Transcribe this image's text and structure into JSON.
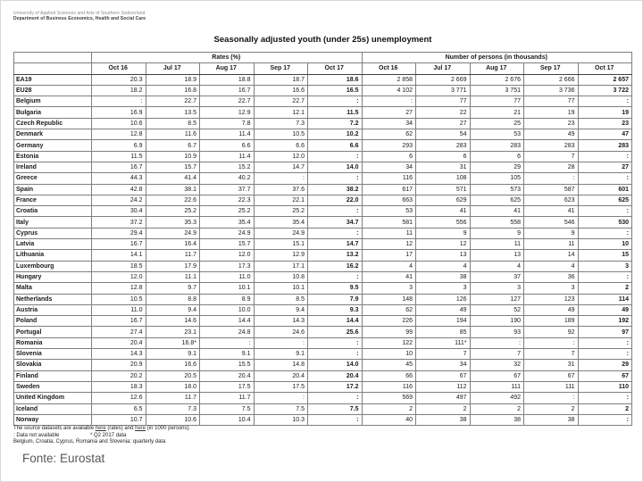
{
  "header": {
    "org_line1": "University of Applied Sciences and Arts of Southern Switzerland",
    "org_line2": "Department of Business Economics, Health and Social Care",
    "title": "Seasonally adjusted youth (under 25s) unemployment"
  },
  "table": {
    "group1_label": "Rates (%)",
    "group2_label": "Number of persons (in thousands)",
    "months": [
      "Oct 16",
      "Jul 17",
      "Aug 17",
      "Sep 17",
      "Oct 17"
    ],
    "rows": [
      {
        "country": "EA19",
        "rates": [
          "20.3",
          "18.9",
          "18.8",
          "18.7",
          "18.6"
        ],
        "persons": [
          "2 858",
          "2 669",
          "2 676",
          "2 666",
          "2 657"
        ]
      },
      {
        "country": "EU28",
        "rates": [
          "18.2",
          "16.8",
          "16.7",
          "16.6",
          "16.5"
        ],
        "persons": [
          "4 102",
          "3 771",
          "3 751",
          "3 736",
          "3 722"
        ]
      },
      {
        "country": "Belgium",
        "rates": [
          ":",
          "22.7",
          "22.7",
          "22.7",
          ":"
        ],
        "persons": [
          ":",
          "77",
          "77",
          "77",
          ":"
        ]
      },
      {
        "country": "Bulgaria",
        "rates": [
          "16.9",
          "13.5",
          "12.9",
          "12.1",
          "11.5"
        ],
        "persons": [
          "27",
          "22",
          "21",
          "19",
          "19"
        ]
      },
      {
        "country": "Czech Republic",
        "rates": [
          "10.6",
          "8.5",
          "7.8",
          "7.3",
          "7.2"
        ],
        "persons": [
          "34",
          "27",
          "25",
          "23",
          "23"
        ]
      },
      {
        "country": "Denmark",
        "rates": [
          "12.8",
          "11.6",
          "11.4",
          "10.5",
          "10.2"
        ],
        "persons": [
          "62",
          "54",
          "53",
          "49",
          "47"
        ]
      },
      {
        "country": "Germany",
        "rates": [
          "6.9",
          "6.7",
          "6.6",
          "6.6",
          "6.6"
        ],
        "persons": [
          "293",
          "283",
          "283",
          "283",
          "283"
        ]
      },
      {
        "country": "Estonia",
        "rates": [
          "11.5",
          "10.9",
          "11.4",
          "12.0",
          ":"
        ],
        "persons": [
          "6",
          "6",
          "6",
          "7",
          ":"
        ]
      },
      {
        "country": "Ireland",
        "rates": [
          "16.7",
          "15.7",
          "15.2",
          "14.7",
          "14.0"
        ],
        "persons": [
          "34",
          "31",
          "29",
          "28",
          "27"
        ]
      },
      {
        "country": "Greece",
        "rates": [
          "44.3",
          "41.4",
          "40.2",
          ":",
          ":"
        ],
        "persons": [
          "116",
          "108",
          "105",
          ":",
          ":"
        ]
      },
      {
        "country": "Spain",
        "rates": [
          "42.8",
          "38.1",
          "37.7",
          "37.6",
          "38.2"
        ],
        "persons": [
          "617",
          "571",
          "573",
          "587",
          "601"
        ]
      },
      {
        "country": "France",
        "rates": [
          "24.2",
          "22.6",
          "22.3",
          "22.1",
          "22.0"
        ],
        "persons": [
          "663",
          "629",
          "625",
          "623",
          "625"
        ]
      },
      {
        "country": "Croatia",
        "rates": [
          "30.4",
          "25.2",
          "25.2",
          "25.2",
          ":"
        ],
        "persons": [
          "53",
          "41",
          "41",
          "41",
          ":"
        ]
      },
      {
        "country": "Italy",
        "rates": [
          "37.2",
          "35.3",
          "35.4",
          "35.4",
          "34.7"
        ],
        "persons": [
          "581",
          "556",
          "558",
          "546",
          "530"
        ]
      },
      {
        "country": "Cyprus",
        "rates": [
          "29.4",
          "24.9",
          "24.9",
          "24.9",
          ":"
        ],
        "persons": [
          "11",
          "9",
          "9",
          "9",
          ":"
        ]
      },
      {
        "country": "Latvia",
        "rates": [
          "16.7",
          "16.4",
          "15.7",
          "15.1",
          "14.7"
        ],
        "persons": [
          "12",
          "12",
          "11",
          "11",
          "10"
        ]
      },
      {
        "country": "Lithuania",
        "rates": [
          "14.1",
          "11.7",
          "12.0",
          "12.9",
          "13.2"
        ],
        "persons": [
          "17",
          "13",
          "13",
          "14",
          "15"
        ]
      },
      {
        "country": "Luxembourg",
        "rates": [
          "18.5",
          "17.9",
          "17.3",
          "17.1",
          "16.2"
        ],
        "persons": [
          "4",
          "4",
          "4",
          "4",
          "3"
        ]
      },
      {
        "country": "Hungary",
        "rates": [
          "12.0",
          "11.1",
          "11.0",
          "10.8",
          ":"
        ],
        "persons": [
          "41",
          "38",
          "37",
          "36",
          ":"
        ]
      },
      {
        "country": "Malta",
        "rates": [
          "12.8",
          "9.7",
          "10.1",
          "10.1",
          "9.5"
        ],
        "persons": [
          "3",
          "3",
          "3",
          "3",
          "2"
        ]
      },
      {
        "country": "Netherlands",
        "rates": [
          "10.5",
          "8.8",
          "8.9",
          "8.5",
          "7.9"
        ],
        "persons": [
          "148",
          "126",
          "127",
          "123",
          "114"
        ]
      },
      {
        "country": "Austria",
        "rates": [
          "11.0",
          "9.4",
          "10.0",
          "9.4",
          "9.3"
        ],
        "persons": [
          "62",
          "49",
          "52",
          "49",
          "49"
        ]
      },
      {
        "country": "Poland",
        "rates": [
          "16.7",
          "14.6",
          "14.4",
          "14.3",
          "14.4"
        ],
        "persons": [
          "226",
          "194",
          "190",
          "189",
          "192"
        ]
      },
      {
        "country": "Portugal",
        "rates": [
          "27.4",
          "23.1",
          "24.8",
          "24.6",
          "25.6"
        ],
        "persons": [
          "99",
          "85",
          "93",
          "92",
          "97"
        ]
      },
      {
        "country": "Romania",
        "rates": [
          "20.4",
          "16.8*",
          ":",
          ":",
          ":"
        ],
        "persons": [
          "122",
          "111*",
          ":",
          ":",
          ":"
        ]
      },
      {
        "country": "Slovenia",
        "rates": [
          "14.3",
          "9.1",
          "9.1",
          "9.1",
          ":"
        ],
        "persons": [
          "10",
          "7",
          "7",
          "7",
          ":"
        ]
      },
      {
        "country": "Slovakia",
        "rates": [
          "20.9",
          "16.6",
          "15.5",
          "14.8",
          "14.0"
        ],
        "persons": [
          "45",
          "34",
          "32",
          "31",
          "29"
        ]
      },
      {
        "country": "Finland",
        "rates": [
          "20.2",
          "20.5",
          "20.4",
          "20.4",
          "20.4"
        ],
        "persons": [
          "66",
          "67",
          "67",
          "67",
          "67"
        ]
      },
      {
        "country": "Sweden",
        "rates": [
          "18.3",
          "18.0",
          "17.5",
          "17.5",
          "17.2"
        ],
        "persons": [
          "116",
          "112",
          "111",
          "111",
          "110"
        ]
      },
      {
        "country": "United Kingdom",
        "rates": [
          "12.6",
          "11.7",
          "11.7",
          ":",
          ":"
        ],
        "persons": [
          "569",
          "497",
          "492",
          ":",
          ":"
        ]
      },
      {
        "country": "Iceland",
        "rates": [
          "6.5",
          "7.3",
          "7.5",
          "7.5",
          "7.5"
        ],
        "persons": [
          "2",
          "2",
          "2",
          "2",
          "2"
        ]
      },
      {
        "country": "Norway",
        "rates": [
          "10.7",
          "10.6",
          "10.4",
          "10.3",
          ":"
        ],
        "persons": [
          "40",
          "38",
          "38",
          "38",
          ":"
        ]
      }
    ]
  },
  "footnotes": {
    "line1_prefix": "The source datasets are available ",
    "link1": "here",
    "line1_mid": " (rates) and ",
    "link2": "here",
    "line1_suffix": " (in 1000 persons).",
    "note_na": ": Data not available",
    "note_q2": "* Q2 2017 data",
    "note_quarterly": "Belgium, Croatia, Cyprus, Romania and Slovenia: quarterly data"
  },
  "footer": {
    "source": "Fonte: Eurostat"
  }
}
